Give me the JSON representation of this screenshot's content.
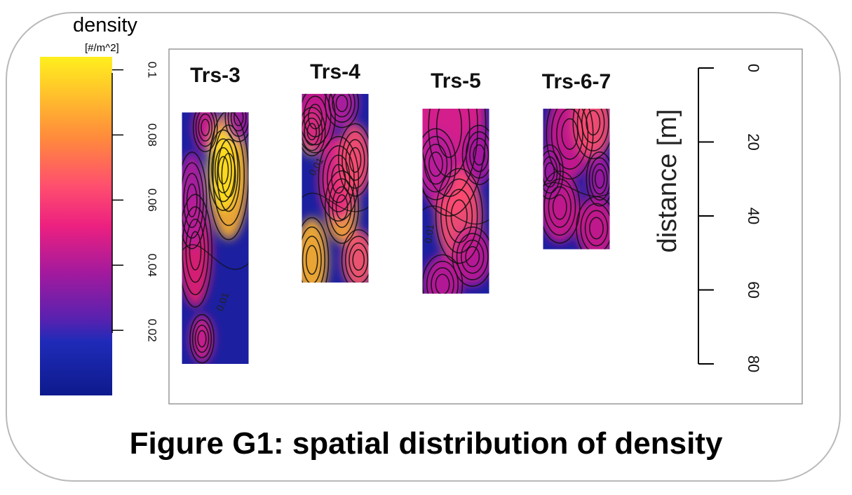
{
  "caption": "Figure G1: spatial distribution of density",
  "colorbar": {
    "title": "density",
    "unit": "[#/m^2]",
    "ticks": [
      "0.1",
      "0.08",
      "0.06",
      "0.04",
      "0.02"
    ],
    "tick_values": [
      0.1,
      0.08,
      0.06,
      0.04,
      0.02
    ],
    "range": [
      0,
      0.104
    ],
    "colors": [
      "#0d1a8c",
      "#1f2bb8",
      "#7a1fa8",
      "#d21a8a",
      "#ff3f7a",
      "#ff8a3c",
      "#ffc62a",
      "#ffef1e"
    ]
  },
  "chart_data": {
    "type": "heatmap",
    "title": "",
    "panels": [
      {
        "name": "Trs-3",
        "y_range_m": [
          12,
          80
        ]
      },
      {
        "name": "Trs-4",
        "y_range_m": [
          7,
          58
        ]
      },
      {
        "name": "Trs-5",
        "y_range_m": [
          11,
          61
        ]
      },
      {
        "name": "Trs-6-7",
        "y_range_m": [
          11,
          49
        ]
      }
    ],
    "contour_labels": [
      "0.01",
      "0.01",
      "0.01"
    ],
    "distance_axis": {
      "label": "distance [m]",
      "ticks": [
        "0",
        "20",
        "40",
        "60",
        "80"
      ],
      "tick_values": [
        0,
        20,
        40,
        60,
        80
      ],
      "range": [
        0,
        80
      ]
    }
  }
}
